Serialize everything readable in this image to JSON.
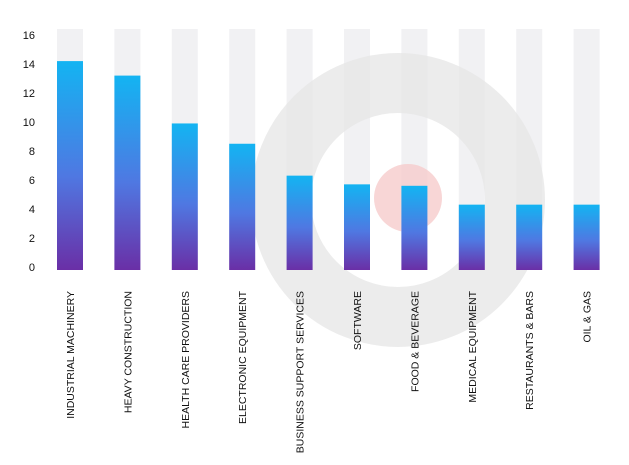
{
  "chart_data": {
    "type": "bar",
    "title": "",
    "xlabel": "",
    "ylabel": "",
    "ylim": [
      0,
      16
    ],
    "yticks": [
      0,
      2,
      4,
      6,
      8,
      10,
      12,
      14,
      16
    ],
    "grid": false,
    "categories": [
      "INDUSTRIAL MACHINERY",
      "HEAVY CONSTRUCTION",
      "HEALTH CARE PROVIDERS",
      "ELECTRONIC EQUIPMENT",
      "BUSINESS SUPPORT SERVICES",
      "SOFTWARE",
      "FOOD & BEVERAGE",
      "MEDICAL EQUIPMENT",
      "RESTAURANTS & BARS",
      "OIL & GAS"
    ],
    "values": [
      14.2,
      13.2,
      9.9,
      8.5,
      6.3,
      5.7,
      5.6,
      4.3,
      4.3,
      4.3
    ],
    "colors": {
      "bar_top": "#13b4f2",
      "bar_mid": "#4f78e2",
      "bar_bottom": "#6a2fa6",
      "background_column": "#f1f1f3",
      "watermark": "#e6e6e6",
      "watermark_dot": "#f6cccc"
    }
  }
}
